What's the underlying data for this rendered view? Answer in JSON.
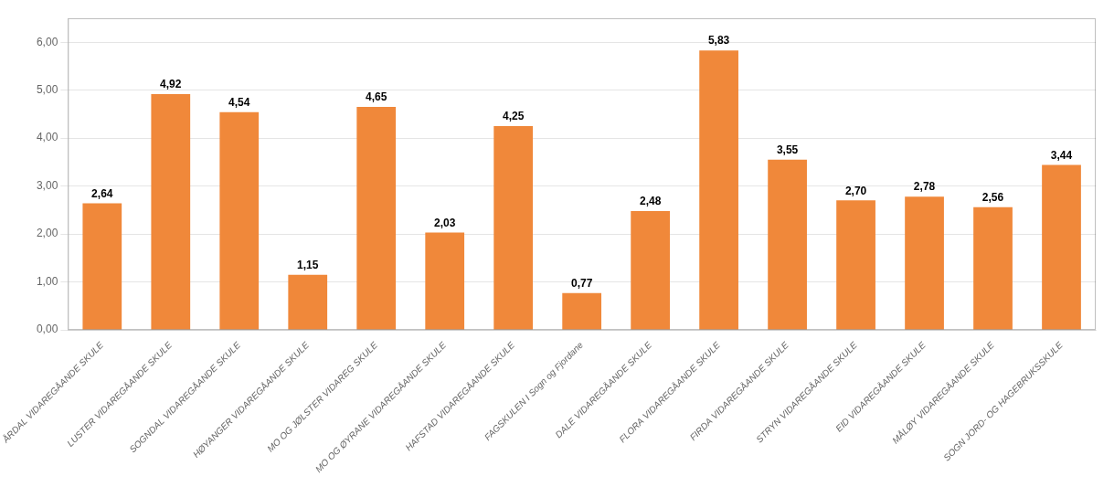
{
  "chart_data": {
    "type": "bar",
    "categories": [
      "ÅRDAL VIDAREGÅANDE SKULE",
      "LUSTER VIDAREGÅANDE SKULE",
      "SOGNDAL VIDAREGÅANDE SKULE",
      "HØYANGER VIDAREGÅANDE SKULE",
      "MO OG JØLSTER VIDAREG SKULE",
      "MO OG ØYRANE VIDAREGÅANDE SKULE",
      "HAFSTAD VIDAREGÅANDE SKULE",
      "FAGSKULEN I Sogn og Fjordane",
      "DALE VIDAREGÅANDE SKULE",
      "FLORA VIDAREGÅANDE SKULE",
      "FIRDA VIDAREGÅANDE SKULE",
      "STRYN VIDAREGÅANDE SKULE",
      "EID VIDAREGÅANDE SKULE",
      "MÅLØY VIDAREGÅANDE SKULE",
      "SOGN JORD- OG HAGEBRUKSSKULE"
    ],
    "values": [
      2.64,
      4.92,
      4.54,
      1.15,
      4.65,
      2.03,
      4.25,
      0.77,
      2.48,
      5.83,
      3.55,
      2.7,
      2.78,
      2.56,
      3.44
    ],
    "value_labels": [
      "2,64",
      "4,92",
      "4,54",
      "1,15",
      "4,65",
      "2,03",
      "4,25",
      "0,77",
      "2,48",
      "5,83",
      "3,55",
      "2,70",
      "2,78",
      "2,56",
      "3,44"
    ],
    "color": "#F0883A",
    "ylim": [
      0,
      6.5
    ],
    "yticks": [
      {
        "value": 0.0,
        "label": "0,00"
      },
      {
        "value": 1.0,
        "label": "1,00"
      },
      {
        "value": 2.0,
        "label": "2,00"
      },
      {
        "value": 3.0,
        "label": "3,00"
      },
      {
        "value": 4.0,
        "label": "4,00"
      },
      {
        "value": 5.0,
        "label": "5,00"
      },
      {
        "value": 6.0,
        "label": "6,00"
      }
    ],
    "grid": true,
    "data_labels": true
  }
}
